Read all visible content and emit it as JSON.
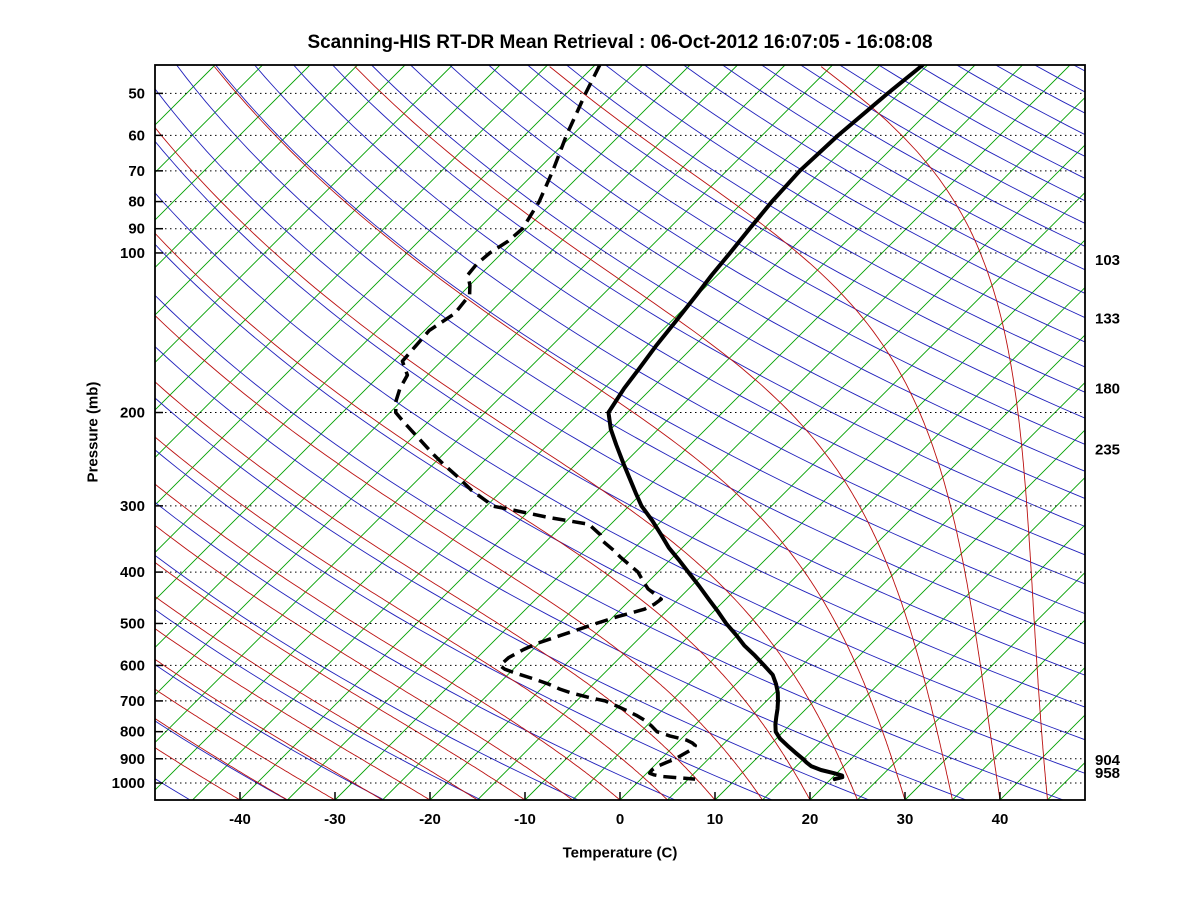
{
  "chart_data": {
    "type": "line",
    "chart_kind": "skew-t-log-p-sounding",
    "title": "Scanning-HIS RT-DR Mean Retrieval : 06-Oct-2012 16:07:05 - 16:08:08",
    "xlabel": "Temperature (C)",
    "ylabel": "Pressure (mb)",
    "axes": {
      "pressure_top_mb": 44.2,
      "pressure_bottom_mb": 1076.5,
      "pressure_ticks": [
        50,
        60,
        70,
        80,
        90,
        100,
        200,
        300,
        400,
        500,
        600,
        700,
        800,
        900,
        1000
      ],
      "temp_ticks_c": [
        -40,
        -30,
        -20,
        -10,
        0,
        10,
        20,
        30,
        40
      ],
      "skew_deg": 45,
      "grid": "dotted-horizontal-isobars"
    },
    "right_axis_pressure_labels": [
      103,
      133,
      180,
      235,
      904,
      958
    ],
    "background_lines": {
      "isotherms": {
        "color": "#00A000",
        "step_c": 5,
        "range_c": [
          -120,
          45
        ]
      },
      "dry_adiabats": {
        "color": "#2020BB",
        "step_c": 10,
        "theta_range_c": [
          -100,
          340
        ]
      },
      "moist_adiabats": {
        "color": "#BB1010",
        "step_c": 5,
        "start_temp_range_c": [
          -100,
          45
        ]
      },
      "isobars": {
        "color": "#000000",
        "style": "dotted"
      }
    },
    "series": [
      {
        "name": "temperature",
        "line_style": "solid",
        "color": "#000000",
        "points_p_t": [
          [
            44.2,
            -45.5
          ],
          [
            50,
            -46.2
          ],
          [
            60,
            -47.0
          ],
          [
            70,
            -47.3
          ],
          [
            80,
            -47.0
          ],
          [
            90,
            -46.5
          ],
          [
            100,
            -46.0
          ],
          [
            110,
            -45.6
          ],
          [
            120,
            -45.1
          ],
          [
            135,
            -44.5
          ],
          [
            150,
            -44.0
          ],
          [
            165,
            -43.4
          ],
          [
            180,
            -42.9
          ],
          [
            200,
            -42.0
          ],
          [
            215,
            -40.0
          ],
          [
            230,
            -37.8
          ],
          [
            250,
            -35.0
          ],
          [
            265,
            -33.0
          ],
          [
            285,
            -30.5
          ],
          [
            300,
            -28.7
          ],
          [
            320,
            -26.0
          ],
          [
            340,
            -23.6
          ],
          [
            360,
            -21.4
          ],
          [
            380,
            -19.0
          ],
          [
            400,
            -16.8
          ],
          [
            425,
            -14.2
          ],
          [
            450,
            -11.8
          ],
          [
            475,
            -9.5
          ],
          [
            500,
            -7.4
          ],
          [
            525,
            -5.2
          ],
          [
            550,
            -3.2
          ],
          [
            575,
            -1.0
          ],
          [
            600,
            1.0
          ],
          [
            625,
            2.9
          ],
          [
            650,
            4.2
          ],
          [
            675,
            5.3
          ],
          [
            700,
            6.2
          ],
          [
            725,
            7.0
          ],
          [
            750,
            7.7
          ],
          [
            775,
            8.4
          ],
          [
            800,
            9.2
          ],
          [
            825,
            10.4
          ],
          [
            850,
            11.9
          ],
          [
            875,
            13.4
          ],
          [
            900,
            14.9
          ],
          [
            915,
            15.7
          ],
          [
            930,
            16.6
          ],
          [
            945,
            18.0
          ],
          [
            958,
            19.7
          ],
          [
            968,
            20.8
          ],
          [
            975,
            21.0
          ],
          [
            983,
            20.4
          ]
        ]
      },
      {
        "name": "dew_point",
        "line_style": "dashed",
        "color": "#000000",
        "points_p_t": [
          [
            44.2,
            -79.5
          ],
          [
            50,
            -78.0
          ],
          [
            60,
            -75.6
          ],
          [
            70,
            -73.3
          ],
          [
            80,
            -71.5
          ],
          [
            90,
            -70.4
          ],
          [
            95,
            -70.6
          ],
          [
            100,
            -71.3
          ],
          [
            105,
            -71.5
          ],
          [
            110,
            -71.3
          ],
          [
            115,
            -70.0
          ],
          [
            120,
            -69.0
          ],
          [
            130,
            -68.6
          ],
          [
            140,
            -69.5
          ],
          [
            150,
            -69.3
          ],
          [
            160,
            -69.1
          ],
          [
            170,
            -67.1
          ],
          [
            180,
            -66.5
          ],
          [
            190,
            -65.6
          ],
          [
            200,
            -64.4
          ],
          [
            210,
            -62.2
          ],
          [
            225,
            -59.0
          ],
          [
            240,
            -56.0
          ],
          [
            250,
            -54.0
          ],
          [
            265,
            -51.0
          ],
          [
            280,
            -48.3
          ],
          [
            295,
            -45.3
          ],
          [
            300,
            -44.5
          ],
          [
            305,
            -42.0
          ],
          [
            315,
            -37.5
          ],
          [
            325,
            -32.3
          ],
          [
            340,
            -30.0
          ],
          [
            350,
            -29.0
          ],
          [
            365,
            -26.8
          ],
          [
            375,
            -25.5
          ],
          [
            400,
            -22.1
          ],
          [
            415,
            -20.7
          ],
          [
            430,
            -19.3
          ],
          [
            450,
            -16.8
          ],
          [
            460,
            -17.0
          ],
          [
            470,
            -17.5
          ],
          [
            485,
            -19.5
          ],
          [
            500,
            -21.1
          ],
          [
            515,
            -22.5
          ],
          [
            530,
            -23.9
          ],
          [
            545,
            -25.2
          ],
          [
            560,
            -26.0
          ],
          [
            580,
            -26.7
          ],
          [
            600,
            -26.8
          ],
          [
            610,
            -25.9
          ],
          [
            620,
            -24.4
          ],
          [
            635,
            -22.0
          ],
          [
            650,
            -19.8
          ],
          [
            665,
            -18.0
          ],
          [
            675,
            -16.6
          ],
          [
            690,
            -14.0
          ],
          [
            700,
            -12.0
          ],
          [
            715,
            -10.3
          ],
          [
            730,
            -8.7
          ],
          [
            745,
            -7.2
          ],
          [
            760,
            -5.9
          ],
          [
            780,
            -4.5
          ],
          [
            800,
            -3.3
          ],
          [
            815,
            -1.5
          ],
          [
            830,
            0.7
          ],
          [
            840,
            1.6
          ],
          [
            850,
            2.2
          ],
          [
            860,
            2.3
          ],
          [
            870,
            2.1
          ],
          [
            885,
            1.8
          ],
          [
            900,
            1.5
          ],
          [
            915,
            0.9
          ],
          [
            930,
            0.4
          ],
          [
            945,
            0.2
          ],
          [
            958,
            0.3
          ],
          [
            965,
            0.9
          ],
          [
            972,
            2.0
          ],
          [
            978,
            4.0
          ],
          [
            983,
            5.7
          ]
        ]
      }
    ]
  }
}
